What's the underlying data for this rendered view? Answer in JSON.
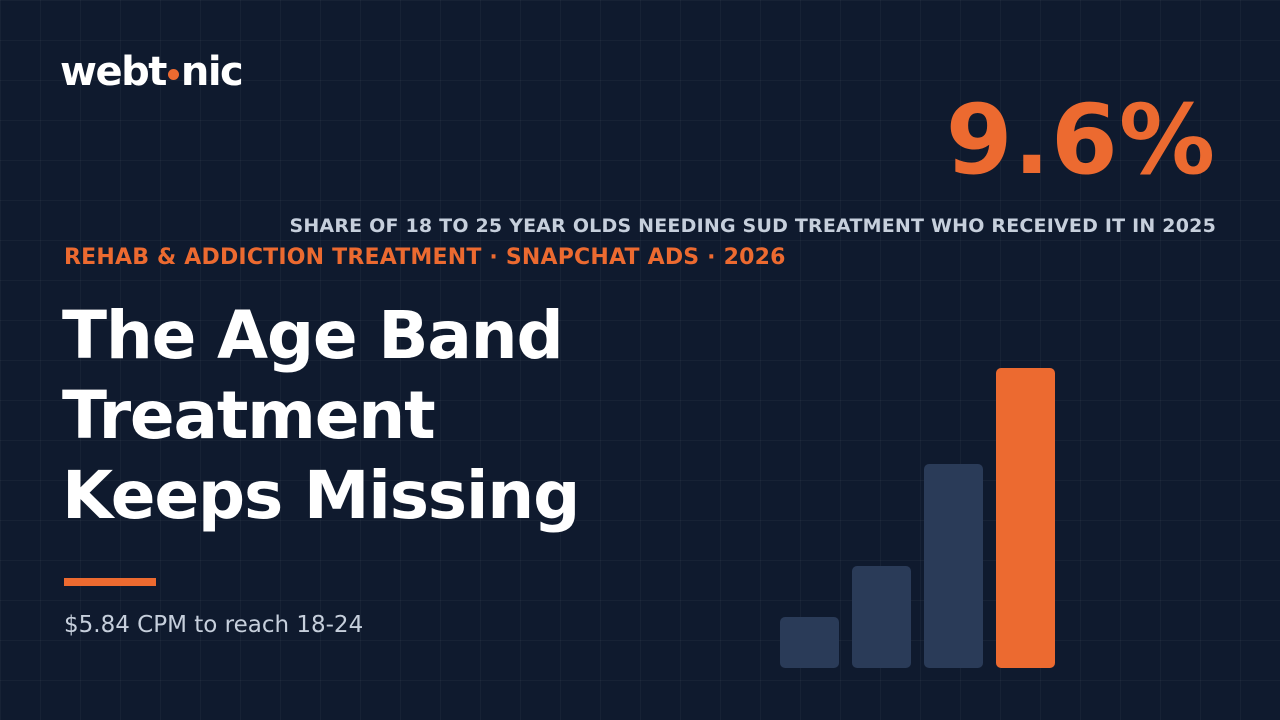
{
  "brand": {
    "logo_left": "webt",
    "logo_right": "nic",
    "dot_color": "#ec6a30"
  },
  "stat": {
    "value": "9.6%",
    "caption": "SHARE OF 18 TO 25 YEAR OLDS NEEDING SUD TREATMENT WHO RECEIVED IT IN 2025",
    "color": "#ec6a30"
  },
  "eyebrow": {
    "text": "REHAB & ADDICTION TREATMENT · SNAPCHAT ADS · 2026",
    "color": "#ec6a30"
  },
  "headline": {
    "lines": [
      "The Age Band",
      "Treatment",
      "Keeps Missing"
    ]
  },
  "accent_color": "#ec6a30",
  "subtext": "$5.84 CPM to reach 18-24",
  "bar_graphic": {
    "levels": [
      0.17,
      0.34,
      0.68,
      1.0
    ],
    "colors": [
      "#2a3b58",
      "#2a3b58",
      "#2a3b58",
      "#ec6a30"
    ]
  }
}
